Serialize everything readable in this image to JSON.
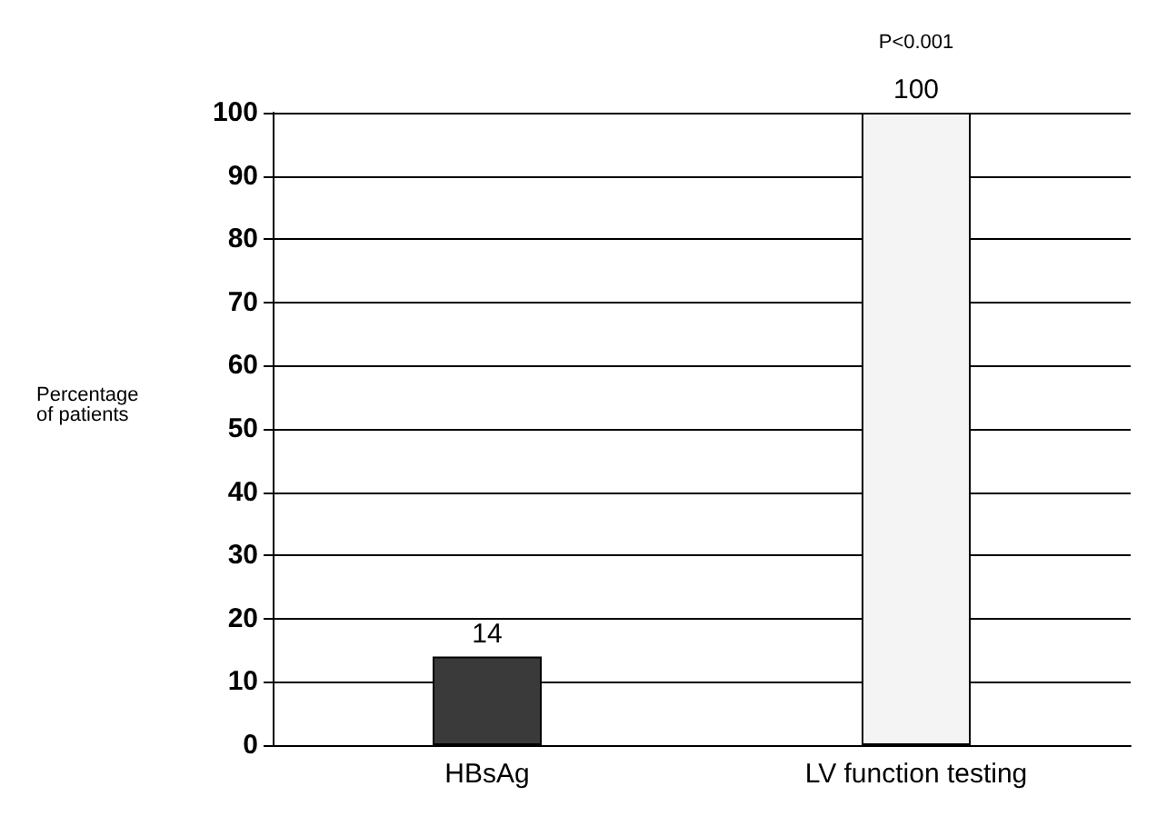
{
  "chart_data": {
    "type": "bar",
    "categories": [
      "HBsAg",
      "LV function testing"
    ],
    "values": [
      14,
      100
    ],
    "colors": [
      "#3a3a3a",
      "#f4f4f4"
    ],
    "ylabel": "Percentage\nof patients",
    "ylim": [
      0,
      100
    ],
    "yticks": [
      0,
      10,
      20,
      30,
      40,
      50,
      60,
      70,
      80,
      90,
      100
    ],
    "grid": "y",
    "data_labels": true,
    "annotations": [
      "P<0.001"
    ]
  }
}
